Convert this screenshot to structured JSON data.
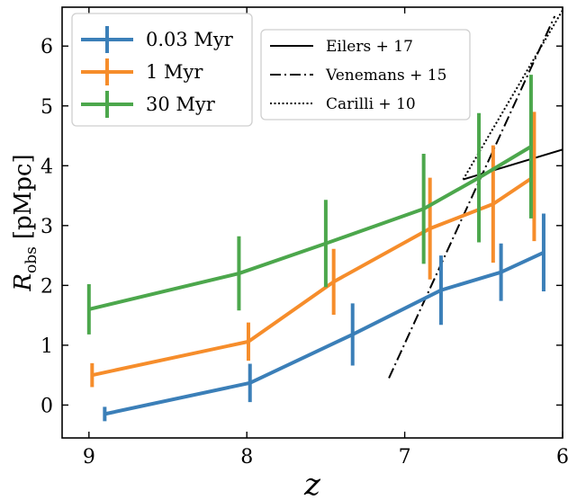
{
  "chart_data": {
    "type": "line",
    "xlabel": "z",
    "ylabel": "R_obs [pMpc]",
    "ylabel_parts": {
      "main": "R",
      "sub": "obs",
      "unit": "[pMpc]"
    },
    "xlim": [
      9.17,
      6.0
    ],
    "ylim": [
      -0.55,
      6.65
    ],
    "x_reversed": true,
    "xticks": [
      9,
      8,
      7,
      6
    ],
    "yticks": [
      0,
      1,
      2,
      3,
      4,
      5,
      6
    ],
    "series": [
      {
        "name": "0.03 Myr",
        "color": "#3b7fb8",
        "x": [
          8.9,
          7.98,
          7.33,
          6.77,
          6.39,
          6.12
        ],
        "y": [
          -0.15,
          0.37,
          1.18,
          1.92,
          2.22,
          2.55
        ],
        "yerr": [
          0.12,
          0.32,
          0.52,
          0.58,
          0.48,
          0.65
        ]
      },
      {
        "name": "1 Myr",
        "color": "#f68d2b",
        "x": [
          8.98,
          7.99,
          7.45,
          6.84,
          6.44,
          6.18
        ],
        "y": [
          0.5,
          1.06,
          2.06,
          2.95,
          3.36,
          3.82
        ],
        "yerr": [
          0.2,
          0.32,
          0.55,
          0.85,
          0.98,
          1.08
        ]
      },
      {
        "name": "30 Myr",
        "color": "#4ca74c",
        "x": [
          9.0,
          8.05,
          7.5,
          6.88,
          6.53,
          6.2
        ],
        "y": [
          1.6,
          2.2,
          2.7,
          3.28,
          3.8,
          4.32
        ],
        "yerr": [
          0.42,
          0.62,
          0.73,
          0.92,
          1.08,
          1.2
        ]
      }
    ],
    "reference_lines": [
      {
        "name": "Eilers + 17",
        "style": "solid",
        "x": [
          6.63,
          6.0
        ],
        "y": [
          3.77,
          4.27
        ]
      },
      {
        "name": "Venemans + 15",
        "style": "dashdot",
        "x": [
          7.1,
          6.05
        ],
        "y": [
          0.45,
          6.5
        ]
      },
      {
        "name": "Carilli + 10",
        "style": "dotted",
        "x": [
          6.63,
          6.0
        ],
        "y": [
          3.77,
          6.6
        ]
      }
    ],
    "legend_position": "top-left",
    "legend2_position": "top-right"
  }
}
